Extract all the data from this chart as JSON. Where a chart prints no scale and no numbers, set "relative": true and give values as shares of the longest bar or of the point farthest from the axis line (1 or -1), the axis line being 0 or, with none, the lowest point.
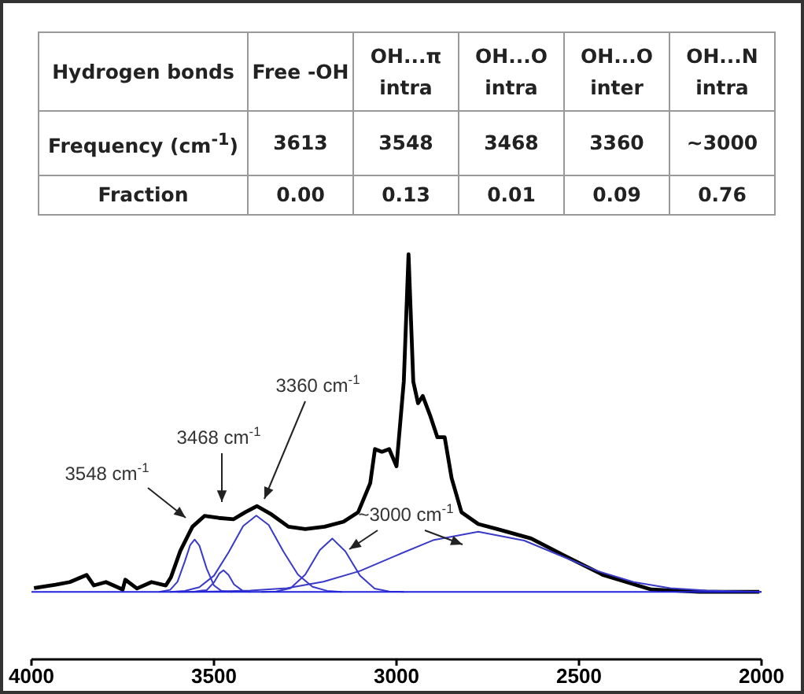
{
  "chart_data": [
    {
      "type": "other",
      "xlabel": "Hydrogen bonds",
      "categories": [
        "Free -OH",
        "OH...π intra",
        "OH...O intra",
        "OH...O inter",
        "OH...N intra"
      ],
      "y_categories": [
        "Frequency (cm$^{-1}$)",
        "Fraction"
      ],
      "cell_labels": [
        [
          "3613",
          "3548",
          "3468",
          "3360",
          "~3000"
        ],
        [
          "0.00",
          "0.13",
          "0.01",
          "0.09",
          "0.76"
        ]
      ]
    },
    {
      "type": "line",
      "relative": true,
      "marker": "none",
      "line_style": "solid",
      "xlim": [
        4000,
        2000
      ],
      "xticks": [
        4000,
        3500,
        3000,
        2500,
        2000
      ],
      "tick_labels": "x",
      "annotations": [
        "3548 cm$^{-1}$",
        "3468 cm$^{-1}$",
        "3360 cm$^{-1}$",
        "~3000 cm$^{-1}$"
      ],
      "series": [
        {
          "color": "#000000",
          "x": [
            3993,
            3934,
            3895,
            3849,
            3829,
            3796,
            3750,
            3743,
            3711,
            3671,
            3632,
            3618,
            3592,
            3559,
            3526,
            3487,
            3447,
            3414,
            3382,
            3342,
            3296,
            3250,
            3197,
            3145,
            3105,
            3072,
            3059,
            3040,
            3020,
            3000,
            2980,
            2967,
            2954,
            2941,
            2928,
            2908,
            2888,
            2868,
            2849,
            2822,
            2776,
            2724,
            2631,
            2539,
            2434,
            2302,
            2171,
            2006
          ],
          "values": [
            0.011,
            0.021,
            0.029,
            0.05,
            0.019,
            0.029,
            0.007,
            0.036,
            0.01,
            0.029,
            0.019,
            0.043,
            0.122,
            0.193,
            0.225,
            0.219,
            0.215,
            0.236,
            0.254,
            0.229,
            0.193,
            0.186,
            0.193,
            0.208,
            0.236,
            0.322,
            0.423,
            0.415,
            0.423,
            0.372,
            0.623,
            1.0,
            0.623,
            0.559,
            0.58,
            0.523,
            0.458,
            0.458,
            0.337,
            0.236,
            0.201,
            0.186,
            0.158,
            0.107,
            0.05,
            0.007,
            0.0,
            0.0
          ]
        },
        {
          "color": "#3a3ac8",
          "x": [
            3650,
            3620,
            3600,
            3580,
            3565,
            3553,
            3540,
            3520,
            3500,
            3480,
            3450
          ],
          "values": [
            0.0,
            0.006,
            0.03,
            0.09,
            0.139,
            0.155,
            0.137,
            0.069,
            0.019,
            0.003,
            0.0
          ]
        },
        {
          "color": "#3a3ac8",
          "x": [
            3560,
            3540,
            3520,
            3500,
            3485,
            3474,
            3460,
            3445,
            3420,
            3400
          ],
          "values": [
            0.0,
            0.003,
            0.005,
            0.028,
            0.055,
            0.064,
            0.05,
            0.022,
            0.002,
            0.0
          ]
        },
        {
          "color": "#3a3ac8",
          "x": [
            3620,
            3580,
            3540,
            3500,
            3460,
            3420,
            3384,
            3350,
            3310,
            3270,
            3230,
            3190,
            3150
          ],
          "values": [
            0.0,
            0.003,
            0.014,
            0.048,
            0.117,
            0.195,
            0.226,
            0.198,
            0.12,
            0.051,
            0.015,
            0.003,
            0.0
          ]
        },
        {
          "color": "#3a3ac8",
          "x": [
            3370,
            3330,
            3290,
            3250,
            3210,
            3176,
            3140,
            3100,
            3060,
            3020,
            2980
          ],
          "values": [
            0.0,
            0.001,
            0.011,
            0.051,
            0.124,
            0.158,
            0.12,
            0.048,
            0.01,
            0.001,
            0.0
          ]
        },
        {
          "color": "#3a3ac8",
          "x": [
            3600,
            3500,
            3400,
            3300,
            3200,
            3100,
            3000,
            2900,
            2776,
            2650,
            2550,
            2450,
            2350,
            2250,
            2150,
            2000
          ],
          "values": [
            0.0,
            0.001,
            0.004,
            0.011,
            0.03,
            0.062,
            0.108,
            0.153,
            0.178,
            0.152,
            0.107,
            0.062,
            0.029,
            0.011,
            0.004,
            0.0
          ]
        },
        {
          "color": "#2222dd",
          "x": [
            4000,
            2000
          ],
          "values": [
            0.0,
            0.0
          ]
        }
      ]
    }
  ]
}
